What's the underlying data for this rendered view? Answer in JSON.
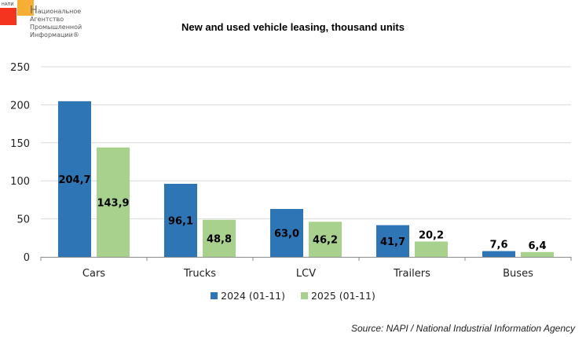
{
  "logo": {
    "abbr": "НАПИ",
    "first_letter": "Н",
    "line1_rest": "ациональное",
    "line2": "Агентство",
    "line3": "Промышленной",
    "line4": "Информации®",
    "colors": {
      "red": "#f5341f",
      "orange": "#f7ae35"
    }
  },
  "source": "Source: NAPI / National Industrial Information Agency",
  "chart_data": {
    "type": "bar",
    "title": "New and used vehicle leasing, thousand units",
    "xlabel": "",
    "ylabel": "",
    "categories": [
      "Cars",
      "Trucks",
      "LCV",
      "Trailers",
      "Buses"
    ],
    "series": [
      {
        "name": "2024 (01-11)",
        "color": "#2e75b6",
        "values": [
          204.7,
          96.1,
          63.0,
          41.7,
          7.6
        ],
        "labels": [
          "204,7",
          "96,1",
          "63,0",
          "41,7",
          "7,6"
        ]
      },
      {
        "name": "2025 (01-11)",
        "color": "#a9d18e",
        "values": [
          143.9,
          48.8,
          46.2,
          20.2,
          6.4
        ],
        "labels": [
          "143,9",
          "48,8",
          "46,2",
          "20,2",
          "6,4"
        ]
      }
    ],
    "ylim": [
      0,
      250
    ],
    "yticks": [
      0,
      50,
      100,
      150,
      200,
      250
    ],
    "ytick_labels": [
      "0",
      "50",
      "100",
      "150",
      "200",
      "250"
    ],
    "grid": true,
    "legend_position": "bottom",
    "data_labels": "inside-center (outside-top when bar too small)"
  }
}
